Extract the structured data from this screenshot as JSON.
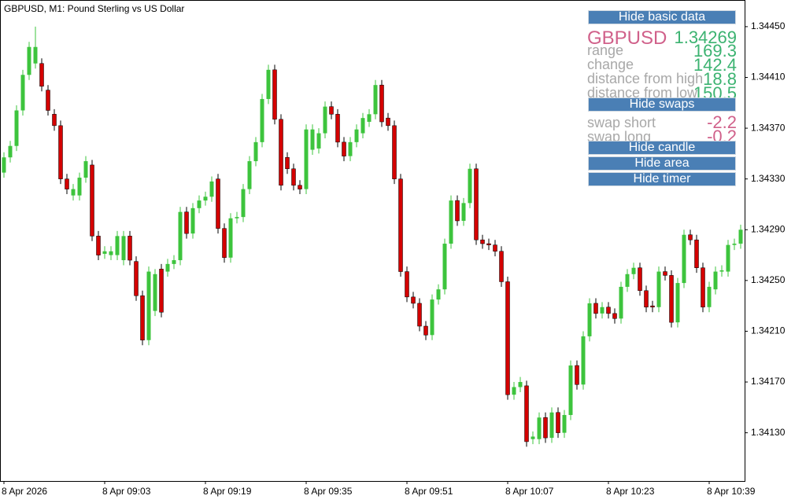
{
  "chart_data": {
    "type": "candlestick",
    "title": "GBPUSD, M1:  Pound Sterling vs US Dollar",
    "up_color": "#3dc43d",
    "down_color": "#d40000",
    "categories": [
      "8 Apr 2026",
      null,
      null,
      null,
      null,
      null,
      null,
      null,
      null,
      null,
      null,
      null,
      null,
      null,
      null,
      null,
      "8 Apr 09:03",
      null,
      null,
      null,
      null,
      null,
      null,
      null,
      null,
      null,
      null,
      null,
      null,
      null,
      null,
      null,
      "8 Apr 09:19",
      null,
      null,
      null,
      null,
      null,
      null,
      null,
      null,
      null,
      null,
      null,
      null,
      null,
      null,
      null,
      "8 Apr 09:35",
      null,
      null,
      null,
      null,
      null,
      null,
      null,
      null,
      null,
      null,
      null,
      null,
      null,
      null,
      null,
      "8 Apr 09:51",
      null,
      null,
      null,
      null,
      null,
      null,
      null,
      null,
      null,
      null,
      null,
      null,
      null,
      null,
      null,
      "8 Apr 10:07",
      null,
      null,
      null,
      null,
      null,
      null,
      null,
      null,
      null,
      null,
      null,
      null,
      null,
      null,
      null,
      "8 Apr 10:23",
      null,
      null,
      null,
      null,
      null,
      null,
      null,
      null,
      null,
      null,
      null,
      null,
      null,
      null,
      null,
      "8 Apr 10:39",
      null,
      null,
      null,
      null,
      null
    ],
    "open": [
      1.34335,
      1.34347,
      1.34356,
      1.34384,
      1.34412,
      1.34421,
      1.34421,
      1.344,
      1.34381,
      1.34372,
      1.3433,
      1.34317,
      1.34317,
      1.34331,
      1.34341,
      1.34285,
      1.34271,
      1.3427,
      1.3427,
      1.34266,
      1.34285,
      1.34265,
      1.34238,
      1.34203,
      1.34226,
      1.34259,
      1.34257,
      1.34263,
      1.34266,
      1.34304,
      1.34287,
      1.34307,
      1.34313,
      1.34316,
      1.3433,
      1.34291,
      1.34268,
      1.34299,
      1.343,
      1.34322,
      1.34344,
      1.34359,
      1.34393,
      1.34416,
      1.34377,
      1.34347,
      1.34338,
      1.34325,
      1.34322,
      1.34353,
      1.34354,
      1.34366,
      1.34387,
      1.34381,
      1.34359,
      1.34348,
      1.34359,
      1.34366,
      1.34375,
      1.34381,
      1.34404,
      1.34378,
      1.34372,
      1.3433,
      1.34257,
      1.34237,
      1.34232,
      1.34214,
      1.34207,
      1.34235,
      1.34243,
      1.34279,
      1.34313,
      1.34297,
      1.34311,
      1.34338,
      1.34282,
      1.34279,
      1.34278,
      1.34273,
      1.34249,
      1.3416,
      1.34166,
      1.34167,
      1.34125,
      1.34125,
      1.34142,
      1.34126,
      1.34146,
      1.3413,
      1.34144,
      1.34183,
      1.34168,
      1.34206,
      1.34232,
      1.34224,
      1.34229,
      1.34224,
      1.3422,
      1.34245,
      1.34255,
      1.3426,
      1.34242,
      1.3423,
      1.34229,
      1.34257,
      1.34254,
      1.34217,
      1.34248,
      1.34286,
      1.34282,
      1.3426,
      1.34229,
      1.34243,
      1.34257,
      1.34257,
      1.34278,
      1.34279
    ],
    "high": [
      1.34351,
      1.3436,
      1.34388,
      1.34416,
      1.34438,
      1.3445,
      1.34425,
      1.34404,
      1.34385,
      1.34376,
      1.34334,
      1.34326,
      1.34335,
      1.34348,
      1.34345,
      1.34289,
      1.34277,
      1.34277,
      1.34289,
      1.34289,
      1.34289,
      1.34269,
      1.34242,
      1.34261,
      1.34259,
      1.34263,
      1.34267,
      1.3427,
      1.34308,
      1.34308,
      1.34311,
      1.34317,
      1.3432,
      1.34332,
      1.34334,
      1.34295,
      1.34303,
      1.34304,
      1.34326,
      1.34348,
      1.34363,
      1.34397,
      1.3442,
      1.3442,
      1.34381,
      1.34351,
      1.34342,
      1.34329,
      1.34373,
      1.34373,
      1.3437,
      1.34391,
      1.34391,
      1.34385,
      1.34363,
      1.34363,
      1.34373,
      1.34382,
      1.34385,
      1.34408,
      1.34408,
      1.34382,
      1.34376,
      1.34334,
      1.34261,
      1.34241,
      1.34236,
      1.34218,
      1.34239,
      1.34247,
      1.34283,
      1.34317,
      1.34317,
      1.34315,
      1.34342,
      1.34342,
      1.34286,
      1.34283,
      1.34282,
      1.34277,
      1.34253,
      1.3417,
      1.34174,
      1.34171,
      1.34131,
      1.34146,
      1.34146,
      1.3415,
      1.3415,
      1.34148,
      1.34187,
      1.34187,
      1.3421,
      1.34236,
      1.34236,
      1.34233,
      1.34233,
      1.34228,
      1.34249,
      1.34259,
      1.34264,
      1.34264,
      1.34246,
      1.34234,
      1.34261,
      1.34261,
      1.34258,
      1.34252,
      1.3429,
      1.3429,
      1.34286,
      1.34264,
      1.34249,
      1.34261,
      1.34262,
      1.34282,
      1.34283,
      1.34294
    ],
    "low": [
      1.34331,
      1.34343,
      1.34352,
      1.3438,
      1.34408,
      1.34417,
      1.34399,
      1.3438,
      1.34368,
      1.34326,
      1.34318,
      1.34313,
      1.34313,
      1.34327,
      1.34281,
      1.34266,
      1.34267,
      1.34266,
      1.34266,
      1.34262,
      1.34262,
      1.34234,
      1.34199,
      1.34199,
      1.34222,
      1.34221,
      1.34253,
      1.34259,
      1.34262,
      1.34283,
      1.34283,
      1.34303,
      1.34309,
      1.34312,
      1.34287,
      1.34264,
      1.34264,
      1.34295,
      1.34296,
      1.34318,
      1.3434,
      1.34355,
      1.34389,
      1.34373,
      1.34321,
      1.34334,
      1.34321,
      1.34318,
      1.34318,
      1.34349,
      1.3435,
      1.34362,
      1.34377,
      1.34355,
      1.34344,
      1.34344,
      1.34355,
      1.34362,
      1.34371,
      1.34377,
      1.34371,
      1.34368,
      1.34326,
      1.34253,
      1.34233,
      1.34228,
      1.3421,
      1.34203,
      1.34203,
      1.34231,
      1.34239,
      1.34275,
      1.34293,
      1.34293,
      1.34307,
      1.34278,
      1.34275,
      1.34274,
      1.34269,
      1.34245,
      1.34156,
      1.34156,
      1.34162,
      1.34119,
      1.34121,
      1.34121,
      1.34122,
      1.34122,
      1.34126,
      1.34126,
      1.3414,
      1.34164,
      1.34164,
      1.34202,
      1.3422,
      1.3422,
      1.3422,
      1.34216,
      1.34216,
      1.34241,
      1.34251,
      1.34238,
      1.34225,
      1.34225,
      1.34225,
      1.3425,
      1.34213,
      1.34213,
      1.34244,
      1.34278,
      1.34256,
      1.34225,
      1.34225,
      1.34239,
      1.34253,
      1.34253,
      1.34274,
      1.34275
    ],
    "close": [
      1.34347,
      1.34356,
      1.34384,
      1.34412,
      1.34434,
      1.34434,
      1.34403,
      1.34384,
      1.34372,
      1.3433,
      1.34322,
      1.34322,
      1.34331,
      1.34344,
      1.34285,
      1.3427,
      1.34273,
      1.34273,
      1.34285,
      1.34285,
      1.34266,
      1.34238,
      1.34203,
      1.34257,
      1.34255,
      1.34225,
      1.34263,
      1.34266,
      1.34304,
      1.34287,
      1.34307,
      1.34313,
      1.34316,
      1.34328,
      1.34291,
      1.34268,
      1.34299,
      1.343,
      1.34322,
      1.34344,
      1.34359,
      1.34393,
      1.34416,
      1.34377,
      1.34325,
      1.34338,
      1.34325,
      1.34322,
      1.34369,
      1.34369,
      1.34366,
      1.34387,
      1.34381,
      1.34359,
      1.34348,
      1.34359,
      1.34369,
      1.34378,
      1.34381,
      1.34404,
      1.34375,
      1.34372,
      1.3433,
      1.34257,
      1.34237,
      1.34232,
      1.34214,
      1.34207,
      1.34235,
      1.34243,
      1.34279,
      1.34313,
      1.34297,
      1.34311,
      1.34338,
      1.34282,
      1.34279,
      1.34278,
      1.34273,
      1.34249,
      1.3416,
      1.34166,
      1.3417,
      1.34123,
      1.34127,
      1.34142,
      1.34126,
      1.34146,
      1.3413,
      1.34144,
      1.34183,
      1.34168,
      1.34206,
      1.34232,
      1.34224,
      1.34229,
      1.34224,
      1.3422,
      1.34245,
      1.34255,
      1.3426,
      1.34242,
      1.34229,
      1.34229,
      1.34257,
      1.34254,
      1.34217,
      1.34248,
      1.34286,
      1.34282,
      1.3426,
      1.34229,
      1.34245,
      1.34257,
      1.34258,
      1.34278,
      1.34279,
      1.3429
    ],
    "ylim": [
      1.34092,
      1.34471
    ],
    "yticks": [
      {
        "value": 1.3413,
        "label": "1.34130"
      },
      {
        "value": 1.3417,
        "label": "1.34170"
      },
      {
        "value": 1.3421,
        "label": "1.34210"
      },
      {
        "value": 1.3425,
        "label": "1.34250"
      },
      {
        "value": 1.3429,
        "label": "1.34290"
      },
      {
        "value": 1.3433,
        "label": "1.34330"
      },
      {
        "value": 1.3437,
        "label": "1.34370"
      },
      {
        "value": 1.3441,
        "label": "1.34410"
      },
      {
        "value": 1.3445,
        "label": "1.34450"
      }
    ]
  },
  "panel": {
    "buttons": [
      "Hide basic data",
      "Hide swaps",
      "Hide candle",
      "Hide area",
      "Hide timer"
    ],
    "symbol": "GBPUSD",
    "price": 1.34269,
    "rows": [
      {
        "label": "range",
        "value": 169.3
      },
      {
        "label": "change",
        "value": 142.4
      },
      {
        "label": "distance from high",
        "value": 18.8
      },
      {
        "label": "distance from low",
        "value": 150.5
      }
    ],
    "swaps": [
      {
        "label": "swap short",
        "value": -2.2
      },
      {
        "label": "swap long",
        "value": -0.2
      }
    ]
  }
}
